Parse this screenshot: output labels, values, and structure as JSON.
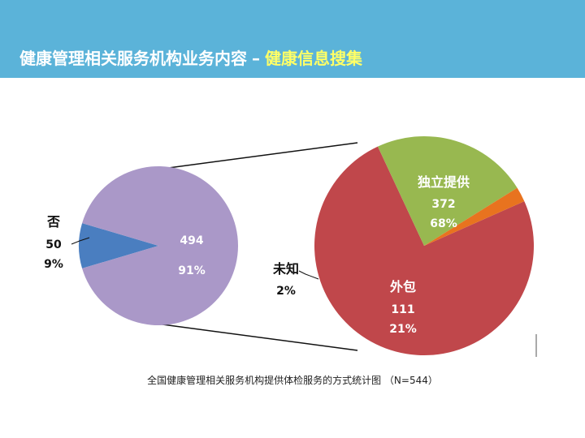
{
  "header": {
    "title": "健康管理相关服务机构业务内容",
    "separator": "–",
    "highlight": "健康信息搜集",
    "background": "#5bb3d9",
    "highlight_color": "#ffff66"
  },
  "chart_data": {
    "type": "pie",
    "title": "",
    "caption": "全国健康管理相关服务机构提供体检服务的方式统计图 （N=544）",
    "pies": [
      {
        "name": "",
        "slices": [
          {
            "label": "否",
            "value": 50,
            "percent": "9%",
            "color": "#4a7ec0"
          },
          {
            "label": "",
            "value": 494,
            "percent": "91%",
            "color": "#aa98c8"
          }
        ]
      },
      {
        "name": "",
        "slices": [
          {
            "label": "独立提供",
            "value": 372,
            "percent": "68%",
            "color": "#c0474b"
          },
          {
            "label": "外包",
            "value": 111,
            "percent": "21%",
            "color": "#98b850"
          },
          {
            "label": "未知",
            "value": "",
            "percent": "2%",
            "color": "#e8731f"
          }
        ]
      }
    ]
  }
}
